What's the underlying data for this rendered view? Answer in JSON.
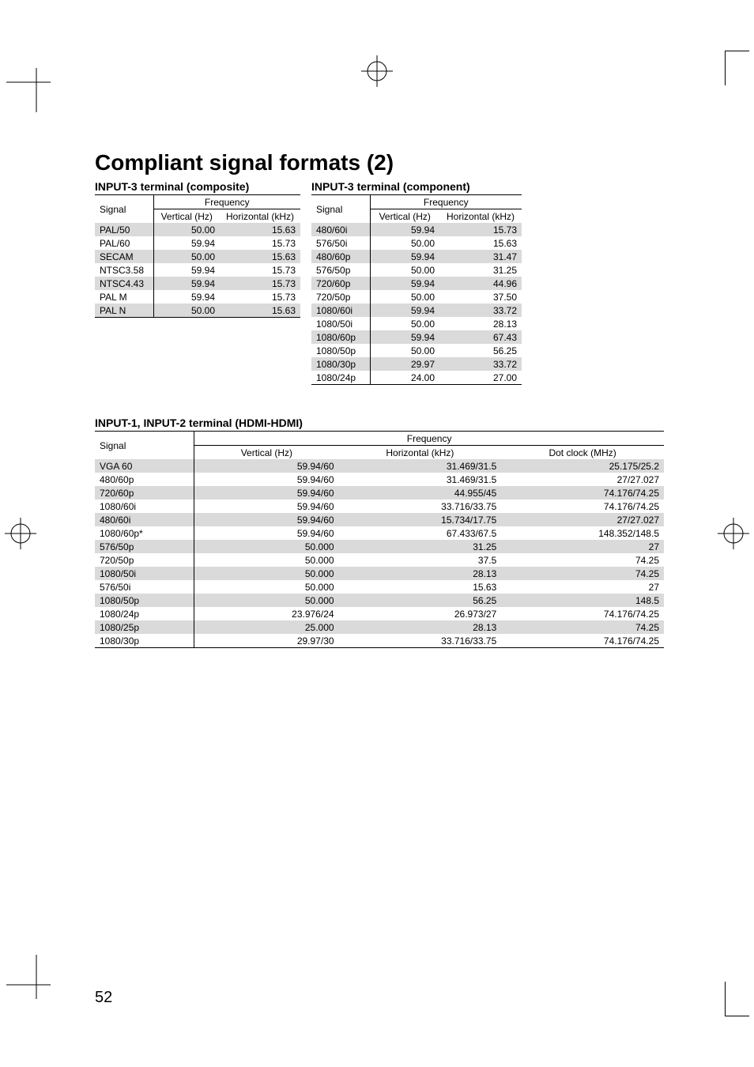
{
  "pageTitle": "Compliant signal formats (2)",
  "pageNumber": "52",
  "colors": {
    "shade": "#dadada",
    "text": "#000000",
    "bg": "#ffffff"
  },
  "composite": {
    "title": "INPUT-3 terminal (composite)",
    "headers": {
      "signal": "Signal",
      "freq": "Frequency",
      "vert": "Vertical (Hz)",
      "horiz": "Horizontal (kHz)"
    },
    "rows": [
      {
        "signal": "PAL/50",
        "vert": "50.00",
        "horiz": "15.63"
      },
      {
        "signal": "PAL/60",
        "vert": "59.94",
        "horiz": "15.73"
      },
      {
        "signal": "SECAM",
        "vert": "50.00",
        "horiz": "15.63"
      },
      {
        "signal": "NTSC3.58",
        "vert": "59.94",
        "horiz": "15.73"
      },
      {
        "signal": "NTSC4.43",
        "vert": "59.94",
        "horiz": "15.73"
      },
      {
        "signal": "PAL M",
        "vert": "59.94",
        "horiz": "15.73"
      },
      {
        "signal": "PAL N",
        "vert": "50.00",
        "horiz": "15.63"
      }
    ]
  },
  "component": {
    "title": "INPUT-3 terminal (component)",
    "headers": {
      "signal": "Signal",
      "freq": "Frequency",
      "vert": "Vertical (Hz)",
      "horiz": "Horizontal (kHz)"
    },
    "rows": [
      {
        "signal": "480/60i",
        "vert": "59.94",
        "horiz": "15.73"
      },
      {
        "signal": "576/50i",
        "vert": "50.00",
        "horiz": "15.63"
      },
      {
        "signal": "480/60p",
        "vert": "59.94",
        "horiz": "31.47"
      },
      {
        "signal": "576/50p",
        "vert": "50.00",
        "horiz": "31.25"
      },
      {
        "signal": "720/60p",
        "vert": "59.94",
        "horiz": "44.96"
      },
      {
        "signal": "720/50p",
        "vert": "50.00",
        "horiz": "37.50"
      },
      {
        "signal": "1080/60i",
        "vert": "59.94",
        "horiz": "33.72"
      },
      {
        "signal": "1080/50i",
        "vert": "50.00",
        "horiz": "28.13"
      },
      {
        "signal": "1080/60p",
        "vert": "59.94",
        "horiz": "67.43"
      },
      {
        "signal": "1080/50p",
        "vert": "50.00",
        "horiz": "56.25"
      },
      {
        "signal": "1080/30p",
        "vert": "29.97",
        "horiz": "33.72"
      },
      {
        "signal": "1080/24p",
        "vert": "24.00",
        "horiz": "27.00"
      }
    ]
  },
  "hdmi": {
    "title": "INPUT-1, INPUT-2 terminal (HDMI-HDMI)",
    "headers": {
      "signal": "Signal",
      "freq": "Frequency",
      "vert": "Vertical (Hz)",
      "horiz": "Horizontal (kHz)",
      "dot": "Dot clock (MHz)"
    },
    "rows": [
      {
        "signal": "VGA 60",
        "vert": "59.94/60",
        "horiz": "31.469/31.5",
        "dot": "25.175/25.2"
      },
      {
        "signal": "480/60p",
        "vert": "59.94/60",
        "horiz": "31.469/31.5",
        "dot": "27/27.027"
      },
      {
        "signal": "720/60p",
        "vert": "59.94/60",
        "horiz": "44.955/45",
        "dot": "74.176/74.25"
      },
      {
        "signal": "1080/60i",
        "vert": "59.94/60",
        "horiz": "33.716/33.75",
        "dot": "74.176/74.25"
      },
      {
        "signal": "480/60i",
        "vert": "59.94/60",
        "horiz": "15.734/17.75",
        "dot": "27/27.027"
      },
      {
        "signal": "1080/60p*",
        "vert": "59.94/60",
        "horiz": "67.433/67.5",
        "dot": "148.352/148.5"
      },
      {
        "signal": "576/50p",
        "vert": "50.000",
        "horiz": "31.25",
        "dot": "27"
      },
      {
        "signal": "720/50p",
        "vert": "50.000",
        "horiz": "37.5",
        "dot": "74.25"
      },
      {
        "signal": "1080/50i",
        "vert": "50.000",
        "horiz": "28.13",
        "dot": "74.25"
      },
      {
        "signal": "576/50i",
        "vert": "50.000",
        "horiz": "15.63",
        "dot": "27"
      },
      {
        "signal": "1080/50p",
        "vert": "50.000",
        "horiz": "56.25",
        "dot": "148.5"
      },
      {
        "signal": "1080/24p",
        "vert": "23.976/24",
        "horiz": "26.973/27",
        "dot": "74.176/74.25"
      },
      {
        "signal": "1080/25p",
        "vert": "25.000",
        "horiz": "28.13",
        "dot": "74.25"
      },
      {
        "signal": "1080/30p",
        "vert": "29.97/30",
        "horiz": "33.716/33.75",
        "dot": "74.176/74.25"
      }
    ]
  }
}
